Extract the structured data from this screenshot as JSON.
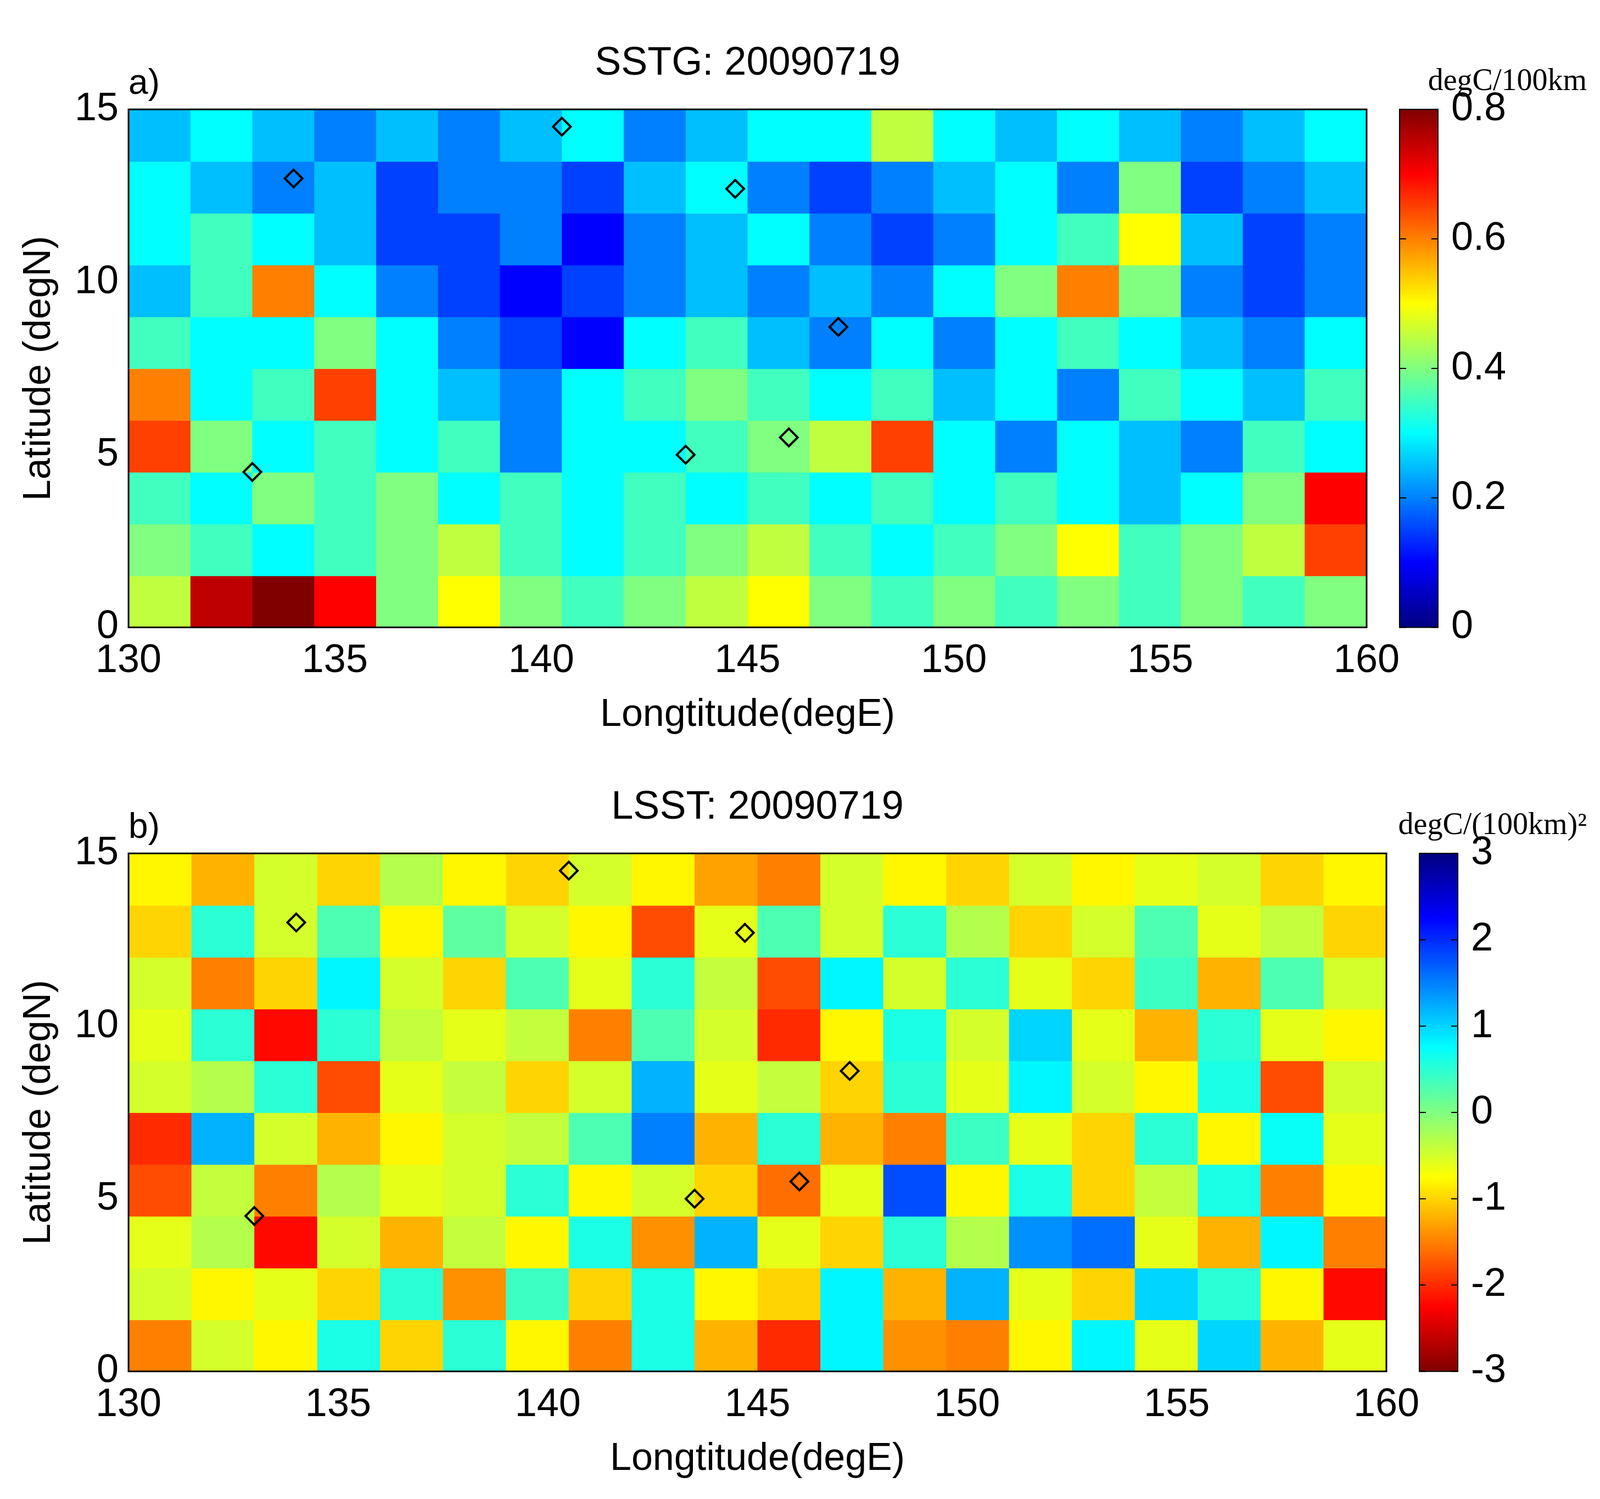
{
  "chart_data": [
    {
      "type": "heatmap",
      "title": "SSTG: 20090719",
      "panel_label": "a)",
      "xlabel": "Longtitude(degE)",
      "ylabel": "Latitude (degN)",
      "xlim": [
        130,
        160
      ],
      "xticks": [
        130,
        135,
        140,
        145,
        150,
        155,
        160
      ],
      "ylim": [
        0,
        15
      ],
      "yticks": [
        0,
        5,
        10,
        15
      ],
      "grid": false,
      "color": "jet",
      "x": [
        130.75,
        132.25,
        133.75,
        135.25,
        136.75,
        138.25,
        139.75,
        141.25,
        142.75,
        144.25,
        145.75,
        147.25,
        148.75,
        150.25,
        151.75,
        153.25,
        154.75,
        156.25,
        157.75,
        159.25
      ],
      "y": [
        0.75,
        2.25,
        3.75,
        5.25,
        6.75,
        8.25,
        9.75,
        11.25,
        12.75,
        14.25
      ],
      "z": [
        [
          0.45,
          0.75,
          0.8,
          0.7,
          0.4,
          0.5,
          0.4,
          0.35,
          0.4,
          0.45,
          0.5,
          0.4,
          0.35,
          0.4,
          0.35,
          0.4,
          0.35,
          0.4,
          0.35,
          0.4
        ],
        [
          0.4,
          0.35,
          0.3,
          0.35,
          0.4,
          0.45,
          0.35,
          0.3,
          0.35,
          0.4,
          0.45,
          0.35,
          0.3,
          0.35,
          0.4,
          0.5,
          0.35,
          0.4,
          0.45,
          0.65
        ],
        [
          0.35,
          0.3,
          0.4,
          0.35,
          0.4,
          0.3,
          0.35,
          0.3,
          0.35,
          0.3,
          0.35,
          0.3,
          0.35,
          0.3,
          0.35,
          0.3,
          0.25,
          0.3,
          0.4,
          0.7
        ],
        [
          0.65,
          0.4,
          0.3,
          0.35,
          0.3,
          0.35,
          0.2,
          0.3,
          0.3,
          0.35,
          0.4,
          0.45,
          0.65,
          0.3,
          0.2,
          0.3,
          0.25,
          0.2,
          0.35,
          0.3
        ],
        [
          0.6,
          0.3,
          0.35,
          0.65,
          0.3,
          0.25,
          0.2,
          0.3,
          0.35,
          0.4,
          0.35,
          0.3,
          0.35,
          0.25,
          0.3,
          0.2,
          0.35,
          0.3,
          0.25,
          0.35
        ],
        [
          0.35,
          0.3,
          0.3,
          0.4,
          0.3,
          0.2,
          0.15,
          0.1,
          0.3,
          0.35,
          0.25,
          0.2,
          0.3,
          0.2,
          0.3,
          0.35,
          0.3,
          0.25,
          0.2,
          0.3
        ],
        [
          0.25,
          0.35,
          0.6,
          0.3,
          0.2,
          0.15,
          0.1,
          0.15,
          0.2,
          0.25,
          0.2,
          0.25,
          0.2,
          0.3,
          0.4,
          0.6,
          0.4,
          0.2,
          0.15,
          0.2
        ],
        [
          0.3,
          0.35,
          0.3,
          0.25,
          0.15,
          0.15,
          0.2,
          0.1,
          0.2,
          0.25,
          0.3,
          0.2,
          0.15,
          0.2,
          0.3,
          0.35,
          0.5,
          0.25,
          0.15,
          0.2
        ],
        [
          0.3,
          0.25,
          0.2,
          0.25,
          0.15,
          0.2,
          0.2,
          0.15,
          0.25,
          0.3,
          0.2,
          0.15,
          0.2,
          0.25,
          0.3,
          0.2,
          0.4,
          0.15,
          0.2,
          0.25
        ],
        [
          0.25,
          0.3,
          0.25,
          0.2,
          0.25,
          0.2,
          0.25,
          0.3,
          0.2,
          0.25,
          0.3,
          0.3,
          0.45,
          0.3,
          0.25,
          0.3,
          0.25,
          0.2,
          0.25,
          0.3
        ]
      ],
      "markers": {
        "x": [
          133,
          134,
          140.5,
          143.5,
          144.7,
          146,
          147.2
        ],
        "y": [
          4.5,
          13.0,
          14.5,
          5.0,
          12.7,
          5.5,
          8.7
        ],
        "marker": "diamond"
      },
      "colorbar": {
        "label": "degC/100km",
        "range": [
          0,
          0.8
        ],
        "ticks": [
          0,
          0.2,
          0.4,
          0.6,
          0.8
        ]
      }
    },
    {
      "type": "heatmap",
      "title": "LSST: 20090719",
      "panel_label": "b)",
      "xlabel": "Longtitude(degE)",
      "ylabel": "Latitude (degN)",
      "xlim": [
        130,
        160
      ],
      "xticks": [
        130,
        135,
        140,
        145,
        150,
        155,
        160
      ],
      "ylim": [
        0,
        15
      ],
      "yticks": [
        0,
        5,
        10,
        15
      ],
      "grid": false,
      "color": "jet_r",
      "x": [
        130.75,
        132.25,
        133.75,
        135.25,
        136.75,
        138.25,
        139.75,
        141.25,
        142.75,
        144.25,
        145.75,
        147.25,
        148.75,
        150.25,
        151.75,
        153.25,
        154.75,
        156.25,
        157.75,
        159.25
      ],
      "y": [
        0.75,
        2.25,
        3.75,
        5.25,
        6.75,
        8.25,
        9.75,
        11.25,
        12.75,
        14.25
      ],
      "z": [
        [
          -1.5,
          -0.5,
          -0.8,
          0.6,
          -1,
          0.5,
          -0.8,
          -1.5,
          0.6,
          -1.2,
          -2,
          0.8,
          -1.4,
          -1.5,
          -0.8,
          0.8,
          -0.6,
          1,
          -1.2,
          -0.6
        ],
        [
          -0.5,
          -0.8,
          -0.6,
          -1,
          0.5,
          -1.4,
          0.4,
          -1,
          0.6,
          -0.8,
          -1,
          0.8,
          -1.2,
          1.2,
          -0.6,
          -1,
          1,
          0.5,
          -0.8,
          -2.2
        ],
        [
          -0.6,
          -0.3,
          -2.2,
          -0.5,
          -1.2,
          -0.4,
          -0.8,
          0.6,
          -1.4,
          1.2,
          -0.6,
          -1,
          0.5,
          -0.3,
          1.4,
          1.6,
          -0.6,
          -1.2,
          0.8,
          -1.5
        ],
        [
          -1.8,
          -0.4,
          -1.5,
          -0.3,
          -0.6,
          -0.5,
          0.5,
          -0.8,
          -0.5,
          -1,
          -1.6,
          -0.6,
          1.8,
          -0.8,
          0.6,
          -1,
          -0.4,
          0.6,
          -1.5,
          -0.8
        ],
        [
          -2,
          1.2,
          -0.5,
          -1.2,
          -0.8,
          -0.5,
          -0.4,
          0.3,
          1.5,
          -1.2,
          0.5,
          -1.2,
          -1.5,
          0.4,
          -0.6,
          -1,
          0.5,
          -0.8,
          0.7,
          -0.6
        ],
        [
          -0.5,
          -0.3,
          0.5,
          -1.8,
          -0.6,
          -0.4,
          -1,
          -0.5,
          1.2,
          -0.6,
          -0.4,
          -1,
          0.5,
          -0.6,
          0.8,
          -0.5,
          -0.8,
          0.6,
          -1.8,
          -0.5
        ],
        [
          -0.6,
          0.5,
          -2.2,
          0.5,
          -0.4,
          -0.6,
          -0.4,
          -1.5,
          0.3,
          -0.5,
          -2,
          -0.8,
          0.6,
          -0.5,
          1,
          -0.6,
          -1.2,
          0.5,
          -0.6,
          -0.8
        ],
        [
          -0.5,
          -1.5,
          -1,
          0.8,
          -0.5,
          -1,
          0.3,
          -0.6,
          0.5,
          -0.4,
          -1.8,
          0.8,
          -0.5,
          0.5,
          -0.6,
          -1,
          0.4,
          -1.2,
          0.3,
          -0.5
        ],
        [
          -1,
          0.5,
          -0.5,
          0.3,
          -0.8,
          0.2,
          -0.5,
          -0.8,
          -1.8,
          -0.6,
          0.3,
          -0.5,
          0.5,
          -0.3,
          -1,
          -0.5,
          0.3,
          -0.6,
          -0.4,
          -1
        ],
        [
          -0.8,
          -1.2,
          -0.5,
          -1,
          -0.3,
          -0.8,
          -1,
          -0.5,
          -0.8,
          -1.3,
          -1.5,
          -0.5,
          -0.8,
          -1,
          -0.5,
          -0.8,
          -0.6,
          -0.5,
          -1,
          -0.8
        ]
      ],
      "markers": {
        "x": [
          133,
          134,
          140.5,
          143.5,
          144.7,
          146,
          147.2
        ],
        "y": [
          4.5,
          13.0,
          14.5,
          5.0,
          12.7,
          5.5,
          8.7
        ],
        "marker": "diamond"
      },
      "colorbar": {
        "label": "degC/(100km)²",
        "range": [
          -3,
          3
        ],
        "ticks": [
          -3,
          -2,
          -1,
          0,
          1,
          2,
          3
        ]
      }
    }
  ]
}
